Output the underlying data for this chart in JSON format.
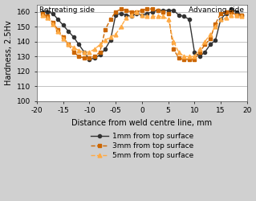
{
  "series1_x": [
    -19,
    -18,
    -17,
    -16,
    -15,
    -14,
    -13,
    -12,
    -11,
    -10,
    -9,
    -8,
    -7,
    -6,
    -5,
    -4,
    -3,
    -2,
    -1,
    0,
    1,
    2,
    3,
    4,
    5,
    6,
    7,
    8,
    9,
    10,
    11,
    12,
    13,
    14,
    15,
    16,
    17,
    18,
    19
  ],
  "series1_y": [
    160,
    160,
    159,
    155,
    151,
    147,
    143,
    138,
    133,
    128,
    129,
    131,
    135,
    141,
    158,
    159,
    158,
    157,
    159,
    158,
    159,
    160,
    161,
    161,
    161,
    161,
    158,
    157,
    155,
    133,
    130,
    133,
    138,
    141,
    155,
    159,
    162,
    160,
    158
  ],
  "series2_x": [
    -19,
    -18,
    -17,
    -16,
    -15,
    -14,
    -13,
    -12,
    -11,
    -10,
    -9,
    -8,
    -7,
    -6,
    -5,
    -4,
    -3,
    -2,
    -1,
    0,
    1,
    2,
    3,
    4,
    5,
    6,
    7,
    8,
    9,
    10,
    11,
    12,
    13,
    14,
    15,
    16,
    17,
    18,
    19
  ],
  "series2_y": [
    159,
    157,
    153,
    148,
    143,
    138,
    133,
    130,
    129,
    129,
    130,
    133,
    148,
    155,
    160,
    162,
    161,
    160,
    160,
    161,
    162,
    162,
    161,
    160,
    159,
    135,
    129,
    128,
    128,
    128,
    133,
    138,
    142,
    152,
    159,
    160,
    160,
    158,
    158
  ],
  "series3_x": [
    -19,
    -18,
    -17,
    -16,
    -15,
    -14,
    -13,
    -12,
    -11,
    -10,
    -9,
    -8,
    -7,
    -6,
    -5,
    -4,
    -3,
    -2,
    -1,
    0,
    1,
    2,
    3,
    4,
    5,
    6,
    7,
    8,
    9,
    10,
    11,
    12,
    13,
    14,
    15,
    16,
    17,
    18,
    19
  ],
  "series3_y": [
    158,
    156,
    152,
    147,
    142,
    138,
    136,
    134,
    133,
    133,
    135,
    138,
    141,
    143,
    145,
    150,
    156,
    158,
    160,
    158,
    157,
    157,
    157,
    157,
    155,
    140,
    133,
    130,
    130,
    130,
    135,
    140,
    145,
    150,
    155,
    156,
    158,
    158,
    157
  ],
  "color1": "#333333",
  "color2": "#cc6600",
  "color3": "#ffaa44",
  "xlim": [
    -20,
    20
  ],
  "ylim": [
    100,
    165
  ],
  "yticks": [
    100,
    110,
    120,
    130,
    140,
    150,
    160
  ],
  "xticks": [
    -20,
    -15,
    -10,
    -5,
    0,
    5,
    10,
    15,
    20
  ],
  "xticklabels": [
    "-20",
    "-15",
    "-10",
    "-05",
    "0",
    "5",
    "10",
    "15",
    "20"
  ],
  "xlabel": "Distance from weld centre line, mm",
  "ylabel": "Hardness, 2.5Hv",
  "label1": "1mm from top surface",
  "label2": "3mm from top surface",
  "label3": "5mm from top surface",
  "text_retreating": "Retreating side",
  "text_advancing": "Advancing side",
  "fig_facecolor": "#d0d0d0",
  "ax_facecolor": "#ffffff"
}
